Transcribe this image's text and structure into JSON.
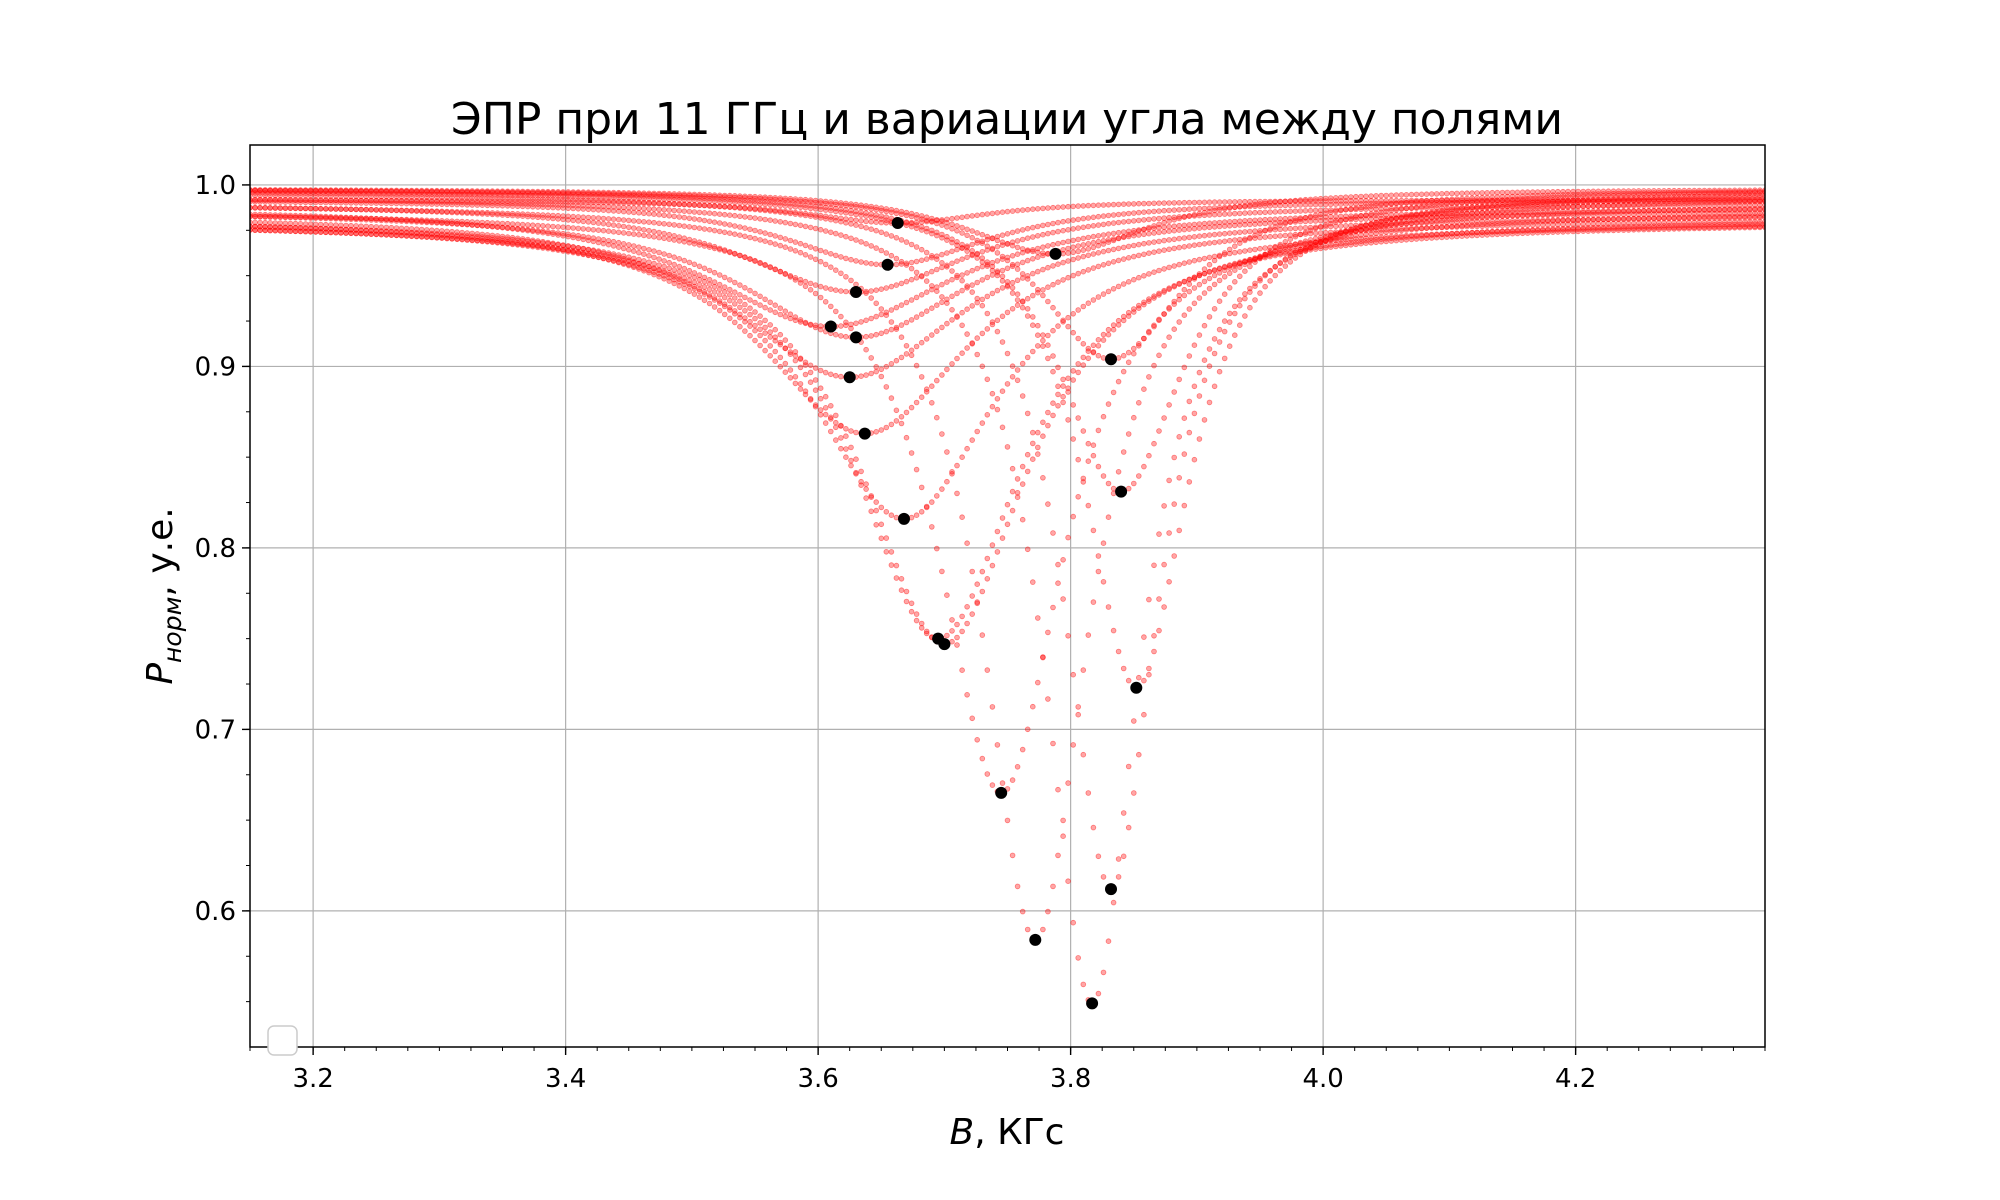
{
  "chart_data": {
    "type": "scatter",
    "title": "ЭПР при 11 ГГц и вариации угла между полями",
    "xlabel_main": "B",
    "xlabel_rest": ", КГс",
    "ylabel_main": "P",
    "ylabel_sub": "норм",
    "ylabel_rest": ", у.е.",
    "xlim": [
      3.15,
      4.35
    ],
    "ylim": [
      0.525,
      1.022
    ],
    "x_ticks": [
      {
        "value": 3.2,
        "label": "3.2"
      },
      {
        "value": 3.4,
        "label": "3.4"
      },
      {
        "value": 3.6,
        "label": "3.6"
      },
      {
        "value": 3.8,
        "label": "3.8"
      },
      {
        "value": 4.0,
        "label": "4.0"
      },
      {
        "value": 4.2,
        "label": "4.2"
      }
    ],
    "y_ticks": [
      {
        "value": 0.6,
        "label": "0.6"
      },
      {
        "value": 0.7,
        "label": "0.7"
      },
      {
        "value": 0.8,
        "label": "0.8"
      },
      {
        "value": 0.9,
        "label": "0.9"
      },
      {
        "value": 1.0,
        "label": "1.0"
      }
    ],
    "grid": true,
    "legend": "lower-left, empty",
    "curve_color": "#ff0000",
    "minimum_marker_color": "#000000",
    "series": [
      {
        "center": 3.663,
        "min": 0.979,
        "width": 0.09,
        "baseline": 0.992
      },
      {
        "center": 3.655,
        "min": 0.956,
        "width": 0.1,
        "baseline": 0.992
      },
      {
        "center": 3.63,
        "min": 0.941,
        "width": 0.11,
        "baseline": 0.99
      },
      {
        "center": 3.61,
        "min": 0.922,
        "width": 0.12,
        "baseline": 0.988
      },
      {
        "center": 3.63,
        "min": 0.916,
        "width": 0.11,
        "baseline": 0.986
      },
      {
        "center": 3.625,
        "min": 0.894,
        "width": 0.11,
        "baseline": 0.984
      },
      {
        "center": 3.637,
        "min": 0.863,
        "width": 0.1,
        "baseline": 0.982
      },
      {
        "center": 3.668,
        "min": 0.816,
        "width": 0.09,
        "baseline": 0.98
      },
      {
        "center": 3.695,
        "min": 0.75,
        "width": 0.08,
        "baseline": 0.98
      },
      {
        "center": 3.7,
        "min": 0.747,
        "width": 0.08,
        "baseline": 0.982
      },
      {
        "center": 3.745,
        "min": 0.665,
        "width": 0.06,
        "baseline": 0.986
      },
      {
        "center": 3.772,
        "min": 0.584,
        "width": 0.05,
        "baseline": 0.99
      },
      {
        "center": 3.817,
        "min": 0.549,
        "width": 0.045,
        "baseline": 0.994
      },
      {
        "center": 3.832,
        "min": 0.612,
        "width": 0.045,
        "baseline": 0.996
      },
      {
        "center": 3.852,
        "min": 0.723,
        "width": 0.05,
        "baseline": 0.997
      },
      {
        "center": 3.84,
        "min": 0.831,
        "width": 0.06,
        "baseline": 0.998
      },
      {
        "center": 3.832,
        "min": 0.904,
        "width": 0.07,
        "baseline": 0.998
      },
      {
        "center": 3.788,
        "min": 0.962,
        "width": 0.09,
        "baseline": 0.998
      }
    ],
    "minima": [
      {
        "x": 3.663,
        "y": 0.979
      },
      {
        "x": 3.655,
        "y": 0.956
      },
      {
        "x": 3.63,
        "y": 0.941
      },
      {
        "x": 3.61,
        "y": 0.922
      },
      {
        "x": 3.63,
        "y": 0.916
      },
      {
        "x": 3.625,
        "y": 0.894
      },
      {
        "x": 3.637,
        "y": 0.863
      },
      {
        "x": 3.668,
        "y": 0.816
      },
      {
        "x": 3.695,
        "y": 0.75
      },
      {
        "x": 3.7,
        "y": 0.747
      },
      {
        "x": 3.745,
        "y": 0.665
      },
      {
        "x": 3.772,
        "y": 0.584
      },
      {
        "x": 3.817,
        "y": 0.549
      },
      {
        "x": 3.832,
        "y": 0.612
      },
      {
        "x": 3.852,
        "y": 0.723
      },
      {
        "x": 3.84,
        "y": 0.831
      },
      {
        "x": 3.832,
        "y": 0.904
      },
      {
        "x": 3.788,
        "y": 0.962
      }
    ]
  }
}
